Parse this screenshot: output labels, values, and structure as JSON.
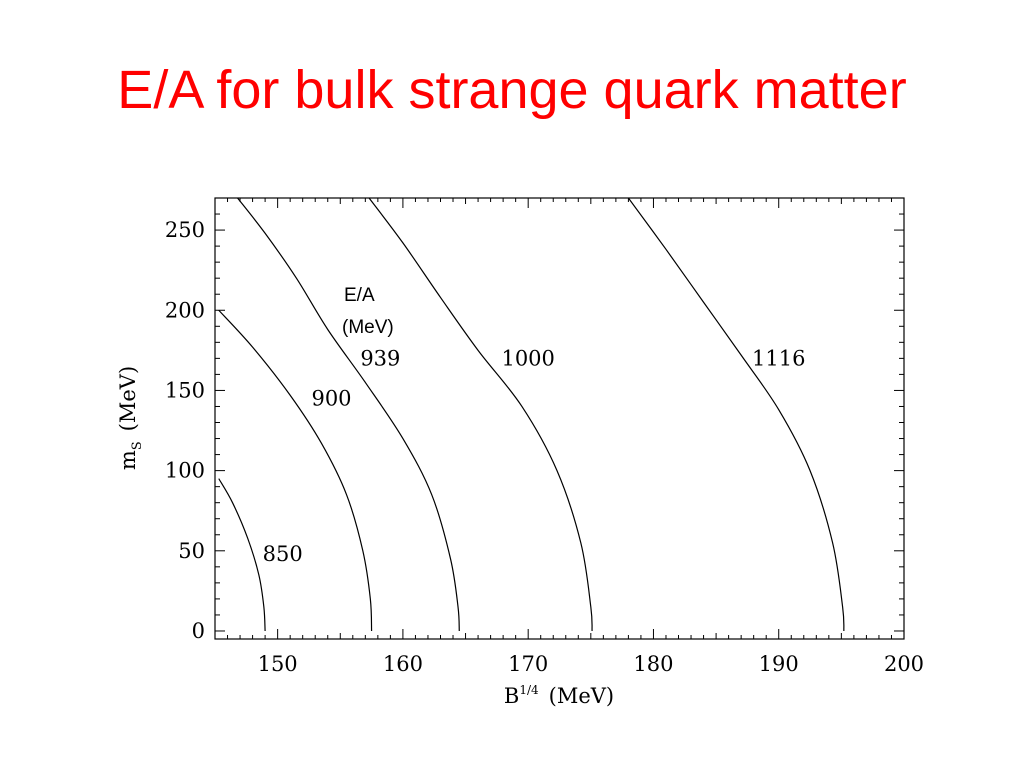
{
  "slide": {
    "title": "E/A for bulk strange quark matter"
  },
  "chart_data": {
    "type": "line",
    "xlabel": "B",
    "xlabel_sup": "1/4",
    "xlabel_unit": "(MeV)",
    "ylabel": "m",
    "ylabel_sub": "S",
    "ylabel_unit": "(MeV)",
    "xlim": [
      145,
      200
    ],
    "ylim": [
      -5,
      270
    ],
    "xticks": [
      150,
      160,
      170,
      180,
      190,
      200
    ],
    "yticks": [
      0,
      50,
      100,
      150,
      200,
      250
    ],
    "legend_title": [
      "E/A",
      "(MeV)"
    ],
    "grid": false,
    "series": [
      {
        "name": "850",
        "label_at": [
          150.4,
          48
        ],
        "points": [
          [
            145.3,
            95
          ],
          [
            146.4,
            80
          ],
          [
            147.6,
            58
          ],
          [
            148.5,
            35
          ],
          [
            148.9,
            15
          ],
          [
            149.0,
            0
          ]
        ]
      },
      {
        "name": "900",
        "label_at": [
          154.3,
          145
        ],
        "points": [
          [
            145.3,
            200
          ],
          [
            148.0,
            177
          ],
          [
            151.0,
            147
          ],
          [
            153.5,
            117
          ],
          [
            155.5,
            85
          ],
          [
            156.8,
            50
          ],
          [
            157.4,
            20
          ],
          [
            157.5,
            0
          ]
        ]
      },
      {
        "name": "939",
        "label_at": [
          158.2,
          170
        ],
        "points": [
          [
            146.8,
            270
          ],
          [
            149.0,
            248
          ],
          [
            151.5,
            220
          ],
          [
            154.0,
            188
          ],
          [
            157.0,
            155
          ],
          [
            160.0,
            120
          ],
          [
            162.3,
            85
          ],
          [
            163.8,
            45
          ],
          [
            164.4,
            15
          ],
          [
            164.5,
            0
          ]
        ]
      },
      {
        "name": "1000",
        "label_at": [
          170.0,
          170
        ],
        "points": [
          [
            157.3,
            270
          ],
          [
            160.0,
            242
          ],
          [
            163.0,
            208
          ],
          [
            166.0,
            175
          ],
          [
            169.5,
            140
          ],
          [
            172.3,
            100
          ],
          [
            174.2,
            55
          ],
          [
            175.0,
            15
          ],
          [
            175.1,
            0
          ]
        ]
      },
      {
        "name": "1116",
        "label_at": [
          190.0,
          170
        ],
        "points": [
          [
            178.0,
            270
          ],
          [
            181.0,
            238
          ],
          [
            184.0,
            205
          ],
          [
            187.0,
            172
          ],
          [
            190.0,
            138
          ],
          [
            192.5,
            100
          ],
          [
            194.3,
            55
          ],
          [
            195.1,
            15
          ],
          [
            195.2,
            0
          ]
        ]
      }
    ]
  }
}
